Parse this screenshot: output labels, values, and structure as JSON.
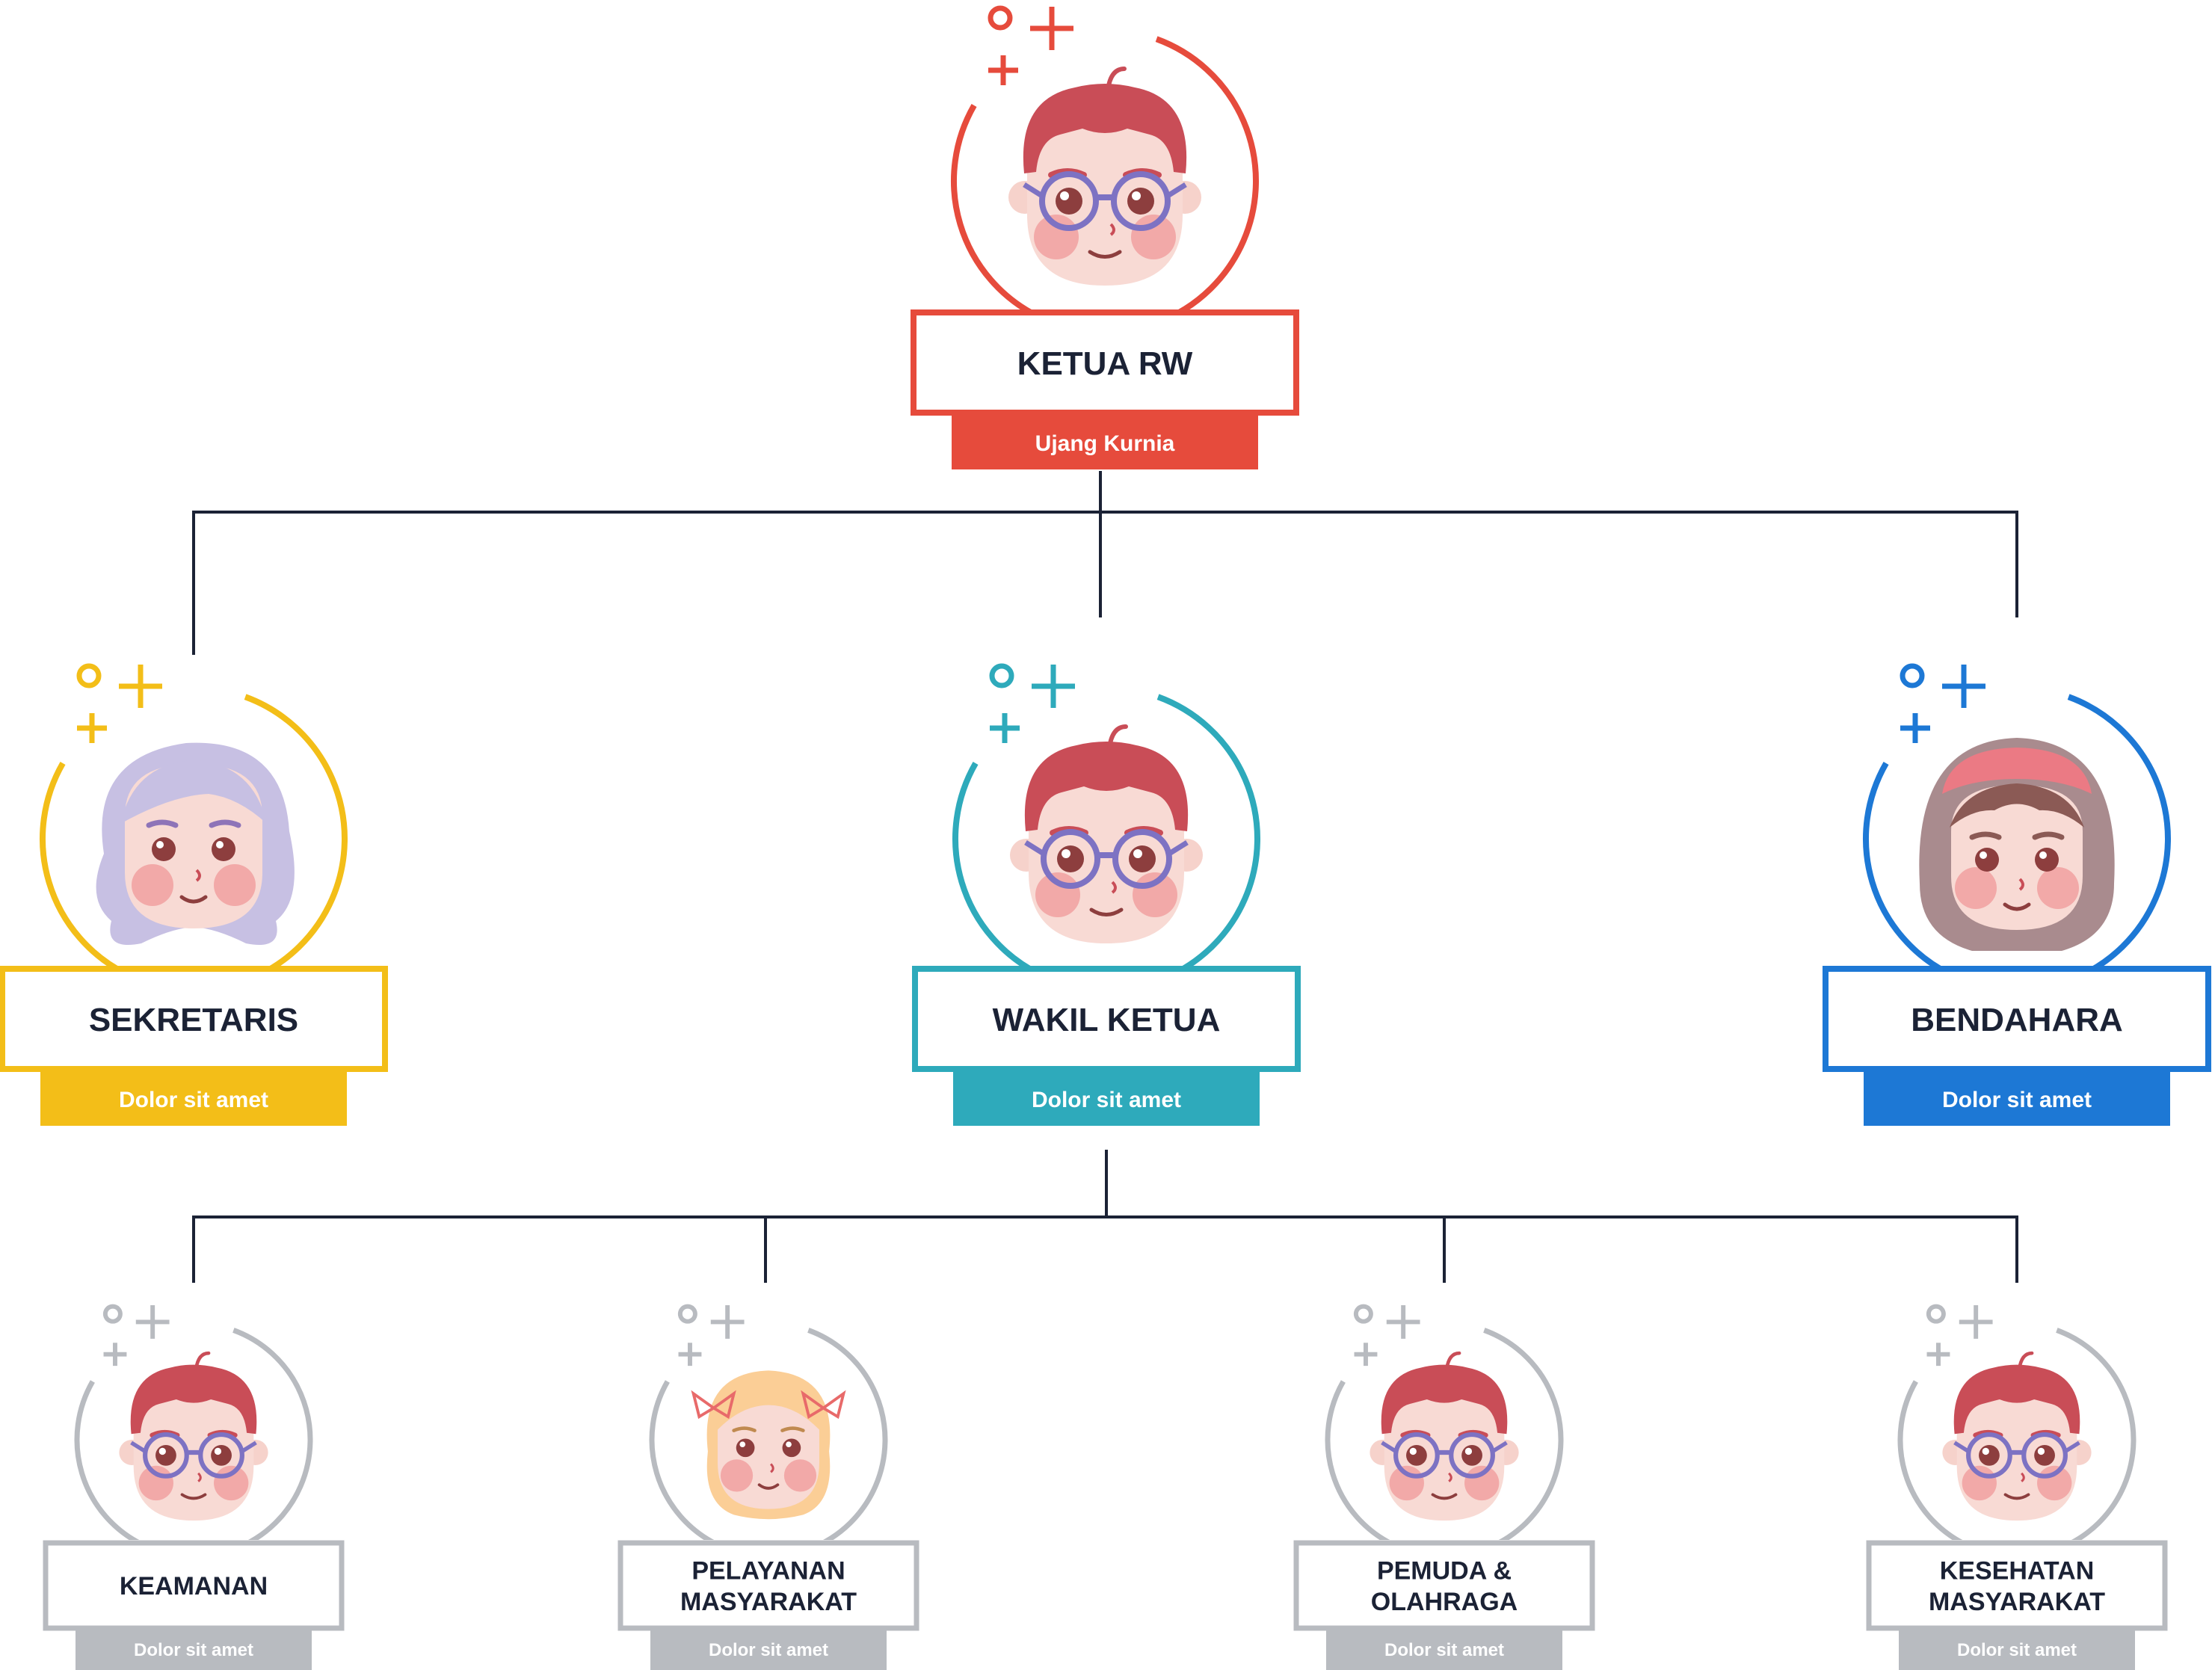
{
  "colors": {
    "red": "#E64B3C",
    "yellow": "#F3BE18",
    "teal": "#2EAABB",
    "blue": "#1D78D5",
    "gray": "#B8BBC0",
    "connector": "#1B2235",
    "title_text": "#1B2235",
    "name_text": "#FFFFFF"
  },
  "nodes": {
    "ketua_rw": {
      "role": "KETUA RW",
      "name": "Ujang Kurnia",
      "color": "red",
      "avatar": "boy-glasses-avatar"
    },
    "sekretaris": {
      "role": "SEKRETARIS",
      "name": "Dolor sit amet",
      "color": "yellow",
      "avatar": "lavender-hair-girl-avatar"
    },
    "wakil_ketua": {
      "role": "WAKIL KETUA",
      "name": "Dolor sit amet",
      "color": "teal",
      "avatar": "boy-glasses-avatar"
    },
    "bendahara": {
      "role": "BENDAHARA",
      "name": "Dolor sit amet",
      "color": "blue",
      "avatar": "hijab-girl-avatar"
    },
    "keamanan": {
      "role_lines": [
        "KEAMANAN"
      ],
      "name": "Dolor sit amet",
      "color": "gray",
      "avatar": "boy-glasses-avatar"
    },
    "pelayanan": {
      "role_lines": [
        "PELAYANAN",
        "MASYARAKAT"
      ],
      "name": "Dolor sit amet",
      "color": "gray",
      "avatar": "blonde-girl-avatar"
    },
    "pemuda": {
      "role_lines": [
        "PEMUDA &",
        "OLAHRAGA"
      ],
      "name": "Dolor sit amet",
      "color": "gray",
      "avatar": "boy-glasses-avatar"
    },
    "kesehatan": {
      "role_lines": [
        "KESEHATAN",
        "MASYARAKAT"
      ],
      "name": "Dolor sit amet",
      "color": "gray",
      "avatar": "boy-glasses-avatar"
    }
  }
}
